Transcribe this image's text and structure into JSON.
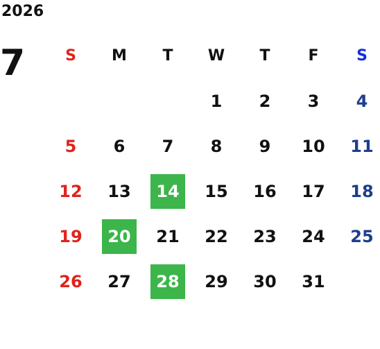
{
  "calendar": {
    "year": "2026",
    "month": "7",
    "weekday_headers": [
      "S",
      "M",
      "T",
      "W",
      "T",
      "F",
      "S"
    ],
    "weeks": [
      [
        "",
        "",
        "",
        "1",
        "2",
        "3",
        "4"
      ],
      [
        "5",
        "6",
        "7",
        "8",
        "9",
        "10",
        "11"
      ],
      [
        "12",
        "13",
        "14",
        "15",
        "16",
        "17",
        "18"
      ],
      [
        "19",
        "20",
        "21",
        "22",
        "23",
        "24",
        "25"
      ],
      [
        "26",
        "27",
        "28",
        "29",
        "30",
        "31",
        ""
      ]
    ],
    "highlighted_days": [
      "14",
      "20",
      "28"
    ],
    "colors": {
      "sunday": "#e0231d",
      "saturday_header": "#1530d8",
      "saturday": "#1e3e8c",
      "highlight_bg": "#3cb54a",
      "highlight_text": "#ffffff",
      "weekday": "#111111"
    }
  }
}
